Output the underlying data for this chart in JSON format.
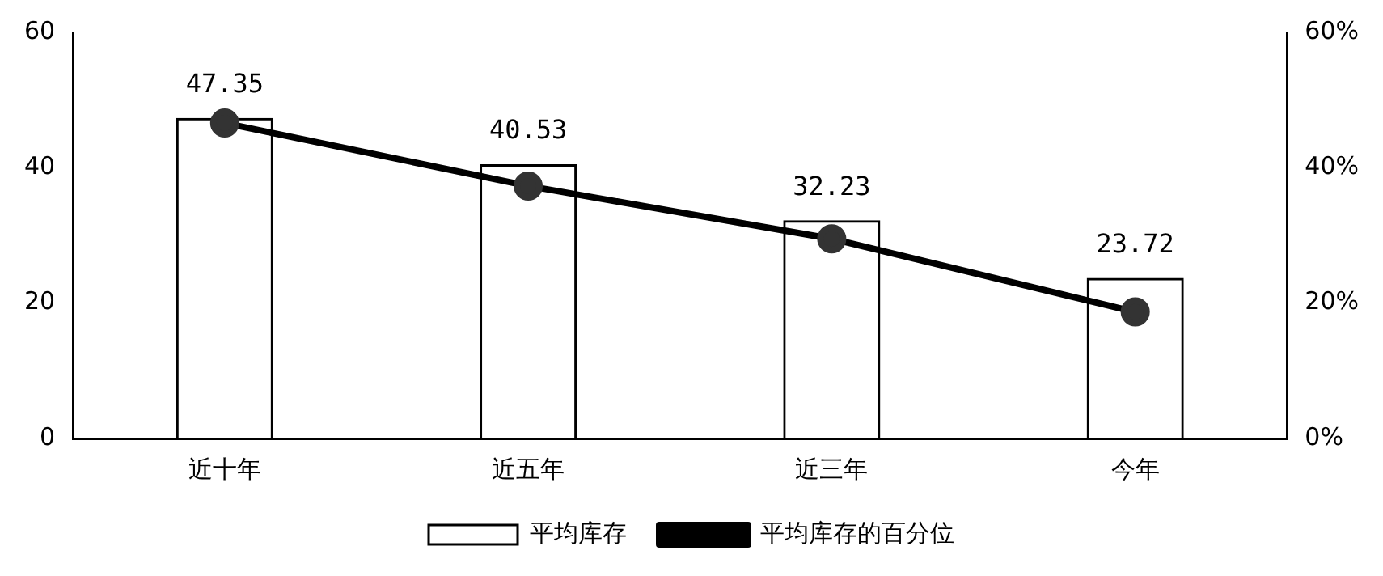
{
  "chart_data": {
    "type": "bar",
    "categories": [
      "近十年",
      "近五年",
      "近三年",
      "今年"
    ],
    "series": [
      {
        "name": "平均库存",
        "color": "#000000",
        "values": [
          47.35,
          40.53,
          32.23,
          23.72
        ],
        "value_labels": [
          "47.35",
          "40.53",
          "32.23",
          "23.72"
        ]
      },
      {
        "name": "平均库存的百分位",
        "type": "line",
        "axis": "y2",
        "color": "#000000",
        "values": [
          46.6,
          37.3,
          29.5,
          18.7
        ],
        "marker": "circle"
      }
    ],
    "ylim": [
      0,
      60
    ],
    "yticks": [
      0,
      20,
      40,
      60
    ],
    "y2lim": [
      0,
      60
    ],
    "y2ticks": [
      {
        "value": 0,
        "label": "0%"
      },
      {
        "value": 20,
        "label": "20%"
      },
      {
        "value": 40,
        "label": "40%"
      },
      {
        "value": 60,
        "label": "60%"
      }
    ],
    "grid": false,
    "legend": "bottom"
  }
}
